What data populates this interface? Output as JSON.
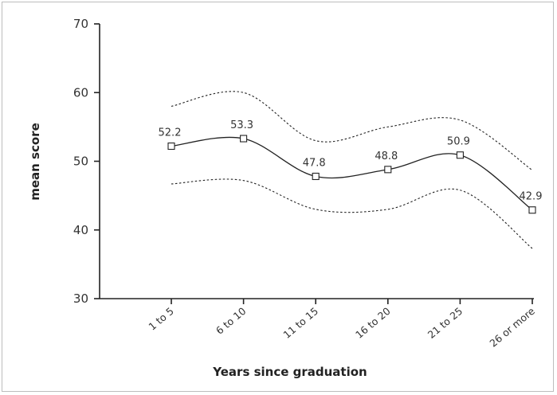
{
  "chart_data": {
    "type": "line",
    "title": "",
    "xlabel": "Years since graduation",
    "ylabel": "mean score",
    "ylim": [
      30,
      70
    ],
    "yticks": [
      30,
      40,
      50,
      60,
      70
    ],
    "categories": [
      "1 to 5",
      "6 to 10",
      "11 to 15",
      "16 to 20",
      "21 to 25",
      "26 or more"
    ],
    "series": [
      {
        "values": [
          52.2,
          53.3,
          47.8,
          48.8,
          50.9,
          42.9
        ],
        "style": "solid",
        "marker": "square",
        "labels": [
          "52.2",
          "53.3",
          "47.8",
          "48.8",
          "50.9",
          "42.9"
        ]
      },
      {
        "values": [
          58.0,
          60.0,
          53.0,
          55.0,
          56.0,
          48.7
        ],
        "style": "dotted"
      },
      {
        "values": [
          46.7,
          47.2,
          43.0,
          43.0,
          45.8,
          37.3
        ],
        "style": "dotted"
      }
    ],
    "grid": false,
    "colors": {
      "line": "#222222",
      "axis": "#222222",
      "text": "#333333"
    }
  }
}
